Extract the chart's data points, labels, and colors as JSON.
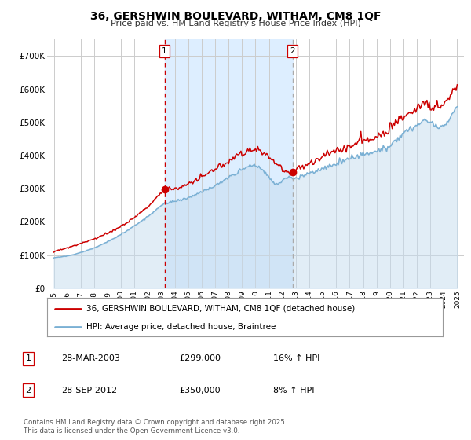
{
  "title": "36, GERSHWIN BOULEVARD, WITHAM, CM8 1QF",
  "subtitle": "Price paid vs. HM Land Registry's House Price Index (HPI)",
  "legend_label1": "36, GERSHWIN BOULEVARD, WITHAM, CM8 1QF (detached house)",
  "legend_label2": "HPI: Average price, detached house, Braintree",
  "footer": "Contains HM Land Registry data © Crown copyright and database right 2025.\nThis data is licensed under the Open Government Licence v3.0.",
  "annotation1_date": "28-MAR-2003",
  "annotation1_price": "£299,000",
  "annotation1_hpi": "16% ↑ HPI",
  "annotation2_date": "28-SEP-2012",
  "annotation2_price": "£350,000",
  "annotation2_hpi": "8% ↑ HPI",
  "vline1_x": 2003.23,
  "vline2_x": 2012.75,
  "shade_color": "#ddeeff",
  "line1_color": "#cc0000",
  "line2_color": "#7ab0d4",
  "fill2_color": "#c5dcef",
  "grid_color": "#cccccc",
  "background_color": "#ffffff",
  "ylim": [
    0,
    750000
  ],
  "xlim": [
    1994.5,
    2025.5
  ],
  "yticks": [
    0,
    100000,
    200000,
    300000,
    400000,
    500000,
    600000,
    700000
  ],
  "ytick_labels": [
    "£0",
    "£100K",
    "£200K",
    "£300K",
    "£400K",
    "£500K",
    "£600K",
    "£700K"
  ],
  "xticks": [
    1995,
    1996,
    1997,
    1998,
    1999,
    2000,
    2001,
    2002,
    2003,
    2004,
    2005,
    2006,
    2007,
    2008,
    2009,
    2010,
    2011,
    2012,
    2013,
    2014,
    2015,
    2016,
    2017,
    2018,
    2019,
    2020,
    2021,
    2022,
    2023,
    2024,
    2025
  ],
  "marker1_y": 299000,
  "marker2_y": 350000
}
